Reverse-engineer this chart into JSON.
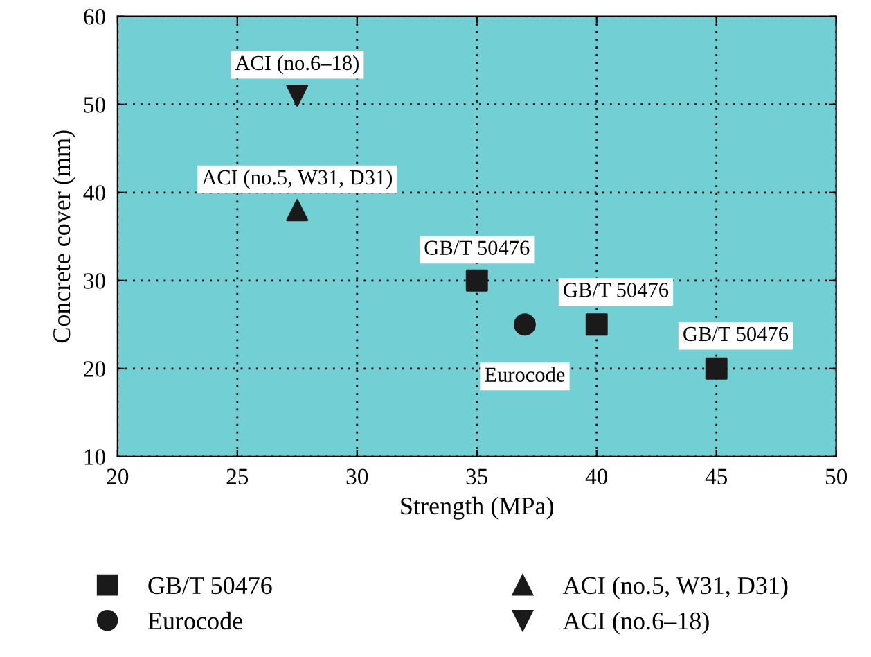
{
  "chart_data": {
    "type": "scatter",
    "xlabel": "Strength (MPa)",
    "ylabel": "Concrete cover (mm)",
    "xlim": [
      20,
      50
    ],
    "xticks": [
      20,
      25,
      30,
      35,
      40,
      45,
      50
    ],
    "ylim": [
      10,
      60
    ],
    "yticks": [
      10,
      20,
      30,
      40,
      50,
      60
    ],
    "grid": true,
    "legend": "bottom",
    "series": [
      {
        "name": "GB/T 50476",
        "color": "#1a1a1a",
        "marker": "square",
        "x": [
          35,
          40,
          45
        ],
        "values": [
          30,
          25,
          20
        ]
      },
      {
        "name": "Eurocode",
        "color": "#1a1a1a",
        "marker": "circle",
        "x": [
          37
        ],
        "values": [
          25
        ]
      },
      {
        "name": "ACI (no.5, W31, D31)",
        "color": "#1a1a1a",
        "marker": "triangle",
        "x": [
          27.5
        ],
        "values": [
          38
        ]
      },
      {
        "name": "ACI (no.6–18)",
        "color": "#1a1a1a",
        "marker": "triangle-down",
        "x": [
          27.5
        ],
        "values": [
          51
        ]
      }
    ],
    "annotations": [
      {
        "text": "ACI (no.6–18)",
        "x": 27.5,
        "y": 51
      },
      {
        "text": "ACI (no.5, W31, D31)",
        "x": 27.5,
        "y": 38
      },
      {
        "text": "GB/T 50476",
        "x": 35,
        "y": 30
      },
      {
        "text": "GB/T 50476",
        "x": 40,
        "y": 25
      },
      {
        "text": "GB/T 50476",
        "x": 45,
        "y": 20
      },
      {
        "text": "Eurocode",
        "x": 37,
        "y": 25
      }
    ]
  }
}
